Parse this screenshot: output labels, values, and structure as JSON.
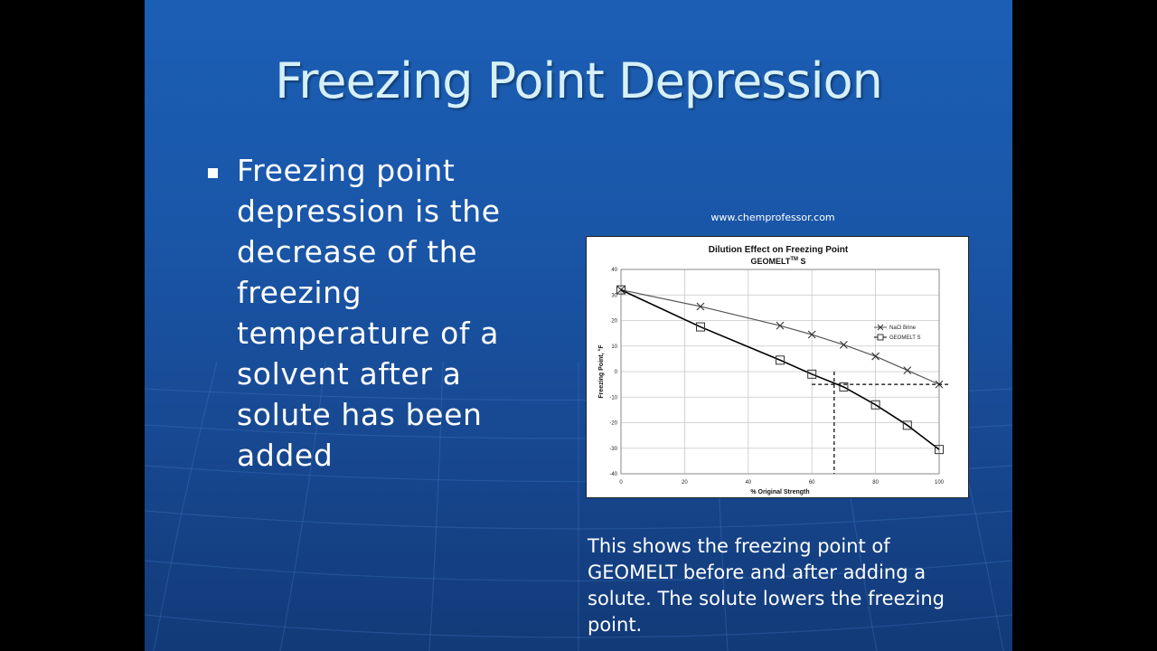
{
  "slide": {
    "title": "Freezing Point Depression",
    "bullet": "Freezing point depression is the decrease of the freezing temperature of a solvent after a solute has been added",
    "source": "www.chemprofessor.com",
    "caption": "This shows the freezing point of GEOMELT before and after adding a solute.  The solute lowers the freezing point."
  },
  "chart_data": {
    "type": "line",
    "title": "Dilution Effect on Freezing Point",
    "subtitle_main": "GEOMELT",
    "subtitle_sup": "TM",
    "subtitle_suffix": "S",
    "xlabel": "% Original Strength",
    "ylabel": "Freezing Point, °F",
    "xlim": [
      0,
      100
    ],
    "ylim": [
      -40,
      40
    ],
    "xticks": [
      0,
      20,
      40,
      60,
      80,
      100
    ],
    "yticks": [
      40,
      30,
      20,
      10,
      0,
      -10,
      -20,
      -30,
      -40
    ],
    "grid": true,
    "legend_position": "right",
    "series": [
      {
        "name": "NaCl Brine",
        "marker": "x",
        "x": [
          0,
          25,
          50,
          60,
          70,
          80,
          90,
          100
        ],
        "y": [
          32,
          25.5,
          18,
          14.5,
          10.5,
          6,
          0.5,
          -5
        ]
      },
      {
        "name": "GEOMELT S",
        "marker": "square",
        "x": [
          0,
          25,
          50,
          60,
          70,
          80,
          90,
          100
        ],
        "y": [
          32,
          17.5,
          4.5,
          -1,
          -6,
          -13,
          -21,
          -30.5
        ]
      }
    ],
    "reference_lines": {
      "vertical_x": 67,
      "horizontal_y": -5
    }
  }
}
